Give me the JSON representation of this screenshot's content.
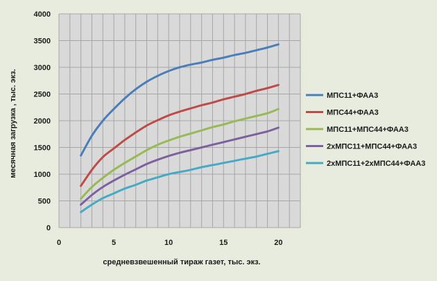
{
  "chart_data": {
    "type": "line",
    "title": "",
    "xlabel": "средневзвешенный тираж газет, тыс. экз.",
    "ylabel": "месячная загрузка , тыс. экз.",
    "xlim": [
      0,
      22
    ],
    "ylim": [
      0,
      4000
    ],
    "x_ticks": [
      0,
      5,
      10,
      15,
      20
    ],
    "y_ticks": [
      0,
      500,
      1000,
      1500,
      2000,
      2500,
      3000,
      3500,
      4000
    ],
    "grid": "vertical and horizontal",
    "legend": "right",
    "plot_background": "#d9d9d9",
    "page_background": "#e8ecdf",
    "series": [
      {
        "name": "МПС11+ФАА3",
        "color": "#4a7ebb",
        "x": [
          2,
          3,
          4,
          5,
          6,
          7,
          8,
          9,
          10,
          11,
          12,
          13,
          14,
          15,
          16,
          17,
          18,
          19,
          20
        ],
        "y": [
          1350,
          1720,
          2000,
          2220,
          2420,
          2590,
          2730,
          2840,
          2930,
          3000,
          3050,
          3090,
          3140,
          3180,
          3230,
          3270,
          3320,
          3370,
          3430
        ]
      },
      {
        "name": "МПС44+ФАА3",
        "color": "#be4b48",
        "x": [
          2,
          3,
          4,
          5,
          6,
          7,
          8,
          9,
          10,
          11,
          12,
          13,
          14,
          15,
          16,
          17,
          18,
          19,
          20
        ],
        "y": [
          780,
          1080,
          1320,
          1480,
          1640,
          1780,
          1910,
          2010,
          2100,
          2170,
          2230,
          2290,
          2340,
          2400,
          2450,
          2500,
          2560,
          2610,
          2670
        ]
      },
      {
        "name": "МПС11+МПС44+ФАА3",
        "color": "#98b954",
        "x": [
          2,
          3,
          4,
          5,
          6,
          7,
          8,
          9,
          10,
          11,
          12,
          13,
          14,
          15,
          16,
          17,
          18,
          19,
          20
        ],
        "y": [
          540,
          760,
          930,
          1080,
          1210,
          1330,
          1450,
          1550,
          1630,
          1700,
          1760,
          1820,
          1880,
          1930,
          1990,
          2040,
          2090,
          2140,
          2220
        ]
      },
      {
        "name": "2хМПС11+МПС44+ФАА3",
        "color": "#7d60a0",
        "x": [
          2,
          3,
          4,
          5,
          6,
          7,
          8,
          9,
          10,
          11,
          12,
          13,
          14,
          15,
          16,
          17,
          18,
          19,
          20
        ],
        "y": [
          430,
          610,
          760,
          880,
          990,
          1090,
          1190,
          1270,
          1340,
          1400,
          1450,
          1500,
          1550,
          1600,
          1650,
          1700,
          1750,
          1800,
          1870
        ]
      },
      {
        "name": "2хМПС11+2хМПС44+ФАА3",
        "color": "#46aac5",
        "x": [
          2,
          3,
          4,
          5,
          6,
          7,
          8,
          9,
          10,
          11,
          12,
          13,
          14,
          15,
          16,
          17,
          18,
          19,
          20
        ],
        "y": [
          290,
          430,
          550,
          640,
          730,
          800,
          880,
          940,
          1000,
          1040,
          1080,
          1130,
          1170,
          1210,
          1250,
          1290,
          1330,
          1380,
          1430
        ]
      }
    ]
  }
}
